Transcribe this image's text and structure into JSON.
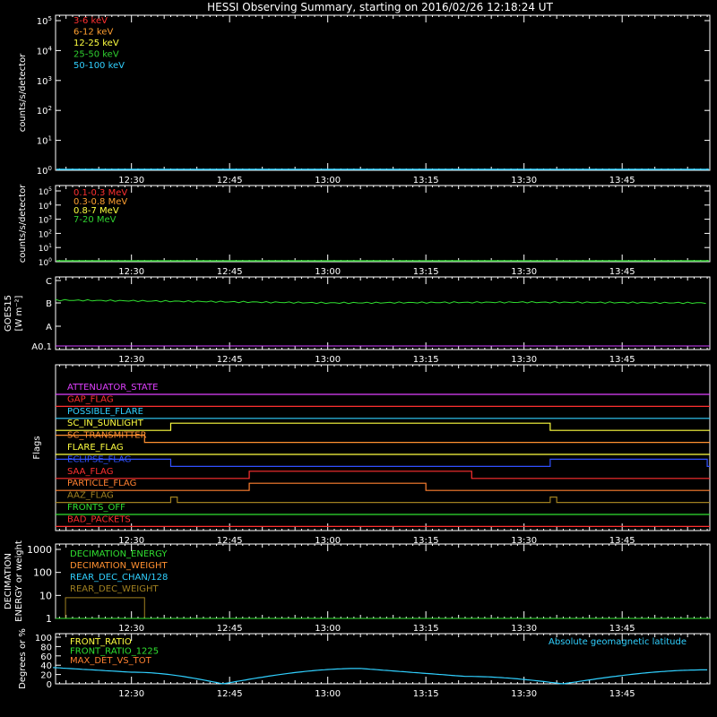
{
  "title": "HESSI Observing Summary, starting on 2016/02/26 12:18:24 UT",
  "time_ticks": [
    "12:30",
    "12:45",
    "13:00",
    "13:15",
    "13:30",
    "13:45"
  ],
  "chart_data": [
    {
      "id": "lowE",
      "type": "line",
      "ylabel": "counts/s/detector",
      "yscale": "log",
      "ylim": [
        1,
        100000
      ],
      "y_tick_labels": [
        "10^0",
        "10^1",
        "10^2",
        "10^3",
        "10^4",
        "10^5"
      ],
      "legend": [
        {
          "label": "3-6 keV",
          "color": "#ff3030"
        },
        {
          "label": "6-12 keV",
          "color": "#ff9f30"
        },
        {
          "label": "12-25 keV",
          "color": "#ffff40"
        },
        {
          "label": "25-50 keV",
          "color": "#30d030"
        },
        {
          "label": "50-100 keV",
          "color": "#30d0ff"
        }
      ],
      "series": [
        {
          "name": "50-100 keV",
          "color": "#30d0ff",
          "x": [
            "12:18",
            "13:58"
          ],
          "values": [
            1,
            1
          ]
        }
      ]
    },
    {
      "id": "highE",
      "type": "line",
      "ylabel": "counts/s/detector",
      "yscale": "log",
      "ylim": [
        1,
        100000
      ],
      "y_tick_labels": [
        "10^0",
        "10^1",
        "10^2",
        "10^3",
        "10^4",
        "10^5"
      ],
      "legend": [
        {
          "label": "0.1-0.3 MeV",
          "color": "#ff3030"
        },
        {
          "label": "0.3-0.8 MeV",
          "color": "#ff9f30"
        },
        {
          "label": "0.8-7 MeV",
          "color": "#ffff40"
        },
        {
          "label": "7-20 MeV",
          "color": "#30d030"
        }
      ],
      "series": [
        {
          "name": "7-20 MeV",
          "color": "#30d030",
          "x": [
            "12:18",
            "13:58"
          ],
          "values": [
            1,
            1
          ]
        }
      ]
    },
    {
      "id": "goes",
      "type": "line",
      "ylabel": "GOES15",
      "ylabel2": "[W m⁻²]",
      "y_tick_labels": [
        "A0.1",
        "A",
        "B",
        "C"
      ],
      "series": [
        {
          "color": "#30e030",
          "x": [
            "12:18",
            "12:40",
            "13:00",
            "13:30",
            "13:58"
          ],
          "values": [
            "B1.4",
            "B1.2",
            "B1.0",
            "B1.1",
            "B1.0"
          ]
        },
        {
          "color": "#d040ff",
          "x": [
            "12:18",
            "13:58"
          ],
          "values": [
            "A0.1",
            "A0.1"
          ]
        }
      ]
    },
    {
      "id": "flags",
      "type": "line",
      "ylabel": "Flags",
      "series": [
        {
          "name": "ATTENUATOR_STATE",
          "color": "#e040ff",
          "steps": []
        },
        {
          "name": "GAP_FLAG",
          "color": "#ff3030",
          "steps": []
        },
        {
          "name": "POSSIBLE_FLARE",
          "color": "#30d0ff",
          "steps": []
        },
        {
          "name": "SC_IN_SUNLIGHT",
          "color": "#ffff40",
          "steps": [
            [
              "12:36",
              "13:34"
            ]
          ]
        },
        {
          "name": "SC_TRANSMITTER",
          "color": "#ff9030",
          "steps": [
            [
              "12:18",
              "12:32"
            ]
          ]
        },
        {
          "name": "FLARE_FLAG",
          "color": "#ffff40",
          "steps": []
        },
        {
          "name": "ECLIPSE_FLAG",
          "color": "#3050ff",
          "steps": [
            [
              "12:18",
              "12:36"
            ],
            [
              "13:34",
              "13:58"
            ]
          ]
        },
        {
          "name": "SAA_FLAG",
          "color": "#ff3030",
          "steps": [
            [
              "12:48",
              "13:22"
            ]
          ]
        },
        {
          "name": "PARTICLE_FLAG",
          "color": "#ff8030",
          "steps": [
            [
              "12:48",
              "13:15"
            ]
          ]
        },
        {
          "name": "AAZ_FLAG",
          "color": "#a08020",
          "steps": [
            [
              "12:36",
              "12:37"
            ],
            [
              "13:34",
              "13:35"
            ]
          ]
        },
        {
          "name": "FRONTS_OFF",
          "color": "#30e030",
          "steps": []
        },
        {
          "name": "BAD_PACKETS",
          "color": "#ff3030",
          "steps": []
        }
      ]
    },
    {
      "id": "decim",
      "type": "line",
      "ylabel": "DECIMATION",
      "ylabel2": "ENERGY or weight",
      "yscale": "log",
      "ylim": [
        1,
        1000
      ],
      "y_tick_labels": [
        "1",
        "10",
        "100",
        "1000"
      ],
      "legend": [
        {
          "label": "DECIMATION_ENERGY",
          "color": "#30e030"
        },
        {
          "label": "DECIMATION_WEIGHT",
          "color": "#ff9030"
        },
        {
          "label": "REAR_DEC_CHAN/128",
          "color": "#30d0ff"
        },
        {
          "label": "REAR_DEC_WEIGHT",
          "color": "#a08020"
        }
      ],
      "series": [
        {
          "name": "REAR_DEC_WEIGHT",
          "color": "#a08020",
          "steps": [
            [
              "12:18",
              "12:32",
              8
            ]
          ]
        },
        {
          "name": "DECIMATION_ENERGY",
          "color": "#30e030",
          "x": [
            "12:18",
            "13:58"
          ],
          "values": [
            1,
            1
          ]
        }
      ]
    },
    {
      "id": "ratio",
      "type": "line",
      "ylabel": "Degrees or %",
      "ylim": [
        0,
        100
      ],
      "y_tick_labels": [
        "0",
        "20",
        "40",
        "60",
        "80",
        "100"
      ],
      "legend": [
        {
          "label": "FRONT_RATIO",
          "color": "#ffff40"
        },
        {
          "label": "FRONT_RATIO_1225",
          "color": "#30e030"
        },
        {
          "label": "MAX_DET_VS_TOT",
          "color": "#ff8030"
        }
      ],
      "right_legend": {
        "label": "Absolute geomagnetic latitude",
        "color": "#30d0ff"
      },
      "series": [
        {
          "name": "Absolute geomagnetic latitude",
          "color": "#30d0ff",
          "x": [
            "12:18",
            "12:30",
            "12:44",
            "13:05",
            "13:21",
            "13:36",
            "13:58"
          ],
          "values": [
            35,
            25,
            0,
            33,
            16,
            0,
            30
          ]
        }
      ]
    }
  ]
}
